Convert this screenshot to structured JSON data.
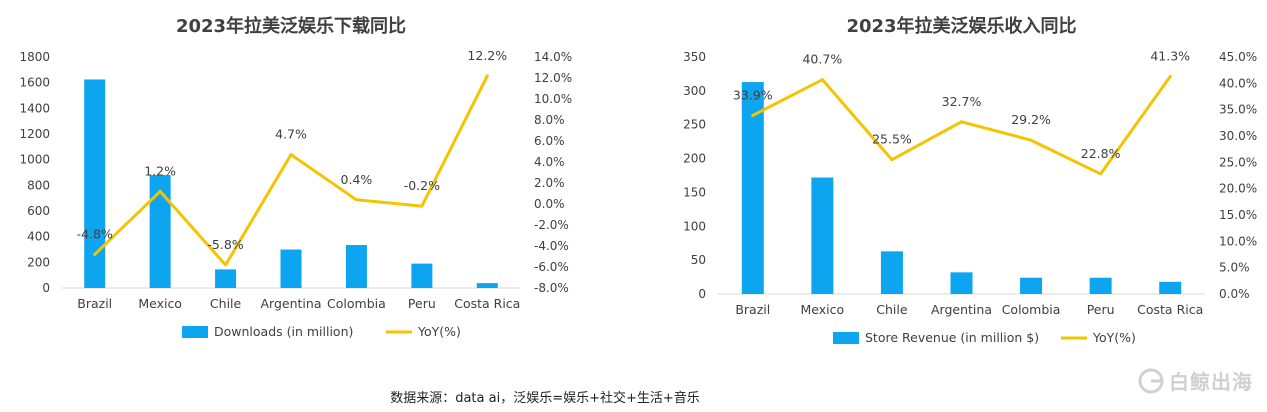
{
  "chart_data": [
    {
      "type": "bar",
      "title": "2023年拉美泛娱乐下载同比",
      "categories": [
        "Brazil",
        "Mexico",
        "Chile",
        "Argentina",
        "Colombia",
        "Peru",
        "Costa Rica"
      ],
      "series": [
        {
          "name": "Downloads (in million)",
          "type": "bar",
          "axis": "left",
          "values": [
            1625,
            880,
            145,
            300,
            335,
            190,
            38
          ]
        },
        {
          "name": "YoY(%)",
          "type": "line",
          "axis": "right",
          "values": [
            -4.8,
            1.2,
            -5.8,
            4.7,
            0.4,
            -0.2,
            12.2
          ],
          "labels": [
            "-4.8%",
            "1.2%",
            "-5.8%",
            "4.7%",
            "0.4%",
            "-0.2%",
            "12.2%"
          ]
        }
      ],
      "left_axis": {
        "min": 0,
        "max": 1800,
        "step": 200,
        "ticks": [
          "0",
          "200",
          "400",
          "600",
          "800",
          "1000",
          "1200",
          "1400",
          "1600",
          "1800"
        ]
      },
      "right_axis": {
        "min": -8,
        "max": 14,
        "step": 2,
        "ticks": [
          "-8.0%",
          "-6.0%",
          "-4.0%",
          "-2.0%",
          "0.0%",
          "2.0%",
          "4.0%",
          "6.0%",
          "8.0%",
          "10.0%",
          "12.0%",
          "14.0%"
        ]
      },
      "legend": "bottom",
      "grid": false
    },
    {
      "type": "bar",
      "title": "2023年拉美泛娱乐收入同比",
      "categories": [
        "Brazil",
        "Mexico",
        "Chile",
        "Argentina",
        "Colombia",
        "Peru",
        "Costa Rica"
      ],
      "series": [
        {
          "name": "Store Revenue (in million $)",
          "type": "bar",
          "axis": "left",
          "values": [
            313,
            172,
            63,
            32,
            24,
            24,
            18
          ]
        },
        {
          "name": "YoY(%)",
          "type": "line",
          "axis": "right",
          "values": [
            33.9,
            40.7,
            25.5,
            32.7,
            29.2,
            22.8,
            41.3
          ],
          "labels": [
            "33.9%",
            "40.7%",
            "25.5%",
            "32.7%",
            "29.2%",
            "22.8%",
            "41.3%"
          ]
        }
      ],
      "left_axis": {
        "min": 0,
        "max": 350,
        "step": 50,
        "ticks": [
          "0",
          "50",
          "100",
          "150",
          "200",
          "250",
          "300",
          "350"
        ]
      },
      "right_axis": {
        "min": 0,
        "max": 45,
        "step": 5,
        "ticks": [
          "0.0%",
          "5.0%",
          "10.0%",
          "15.0%",
          "20.0%",
          "25.0%",
          "30.0%",
          "35.0%",
          "40.0%",
          "45.0%"
        ]
      },
      "legend": "bottom",
      "grid": false
    }
  ],
  "colors": {
    "bar": "#0ea5f0",
    "line": "#f5c400",
    "text": "#404040",
    "title": "#404040"
  },
  "footer": {
    "source": "数据来源：data ai，泛娱乐=娱乐+社交+生活+音乐"
  },
  "logo": {
    "text": "白鲸出海",
    "icon": "whale-logo-icon"
  }
}
